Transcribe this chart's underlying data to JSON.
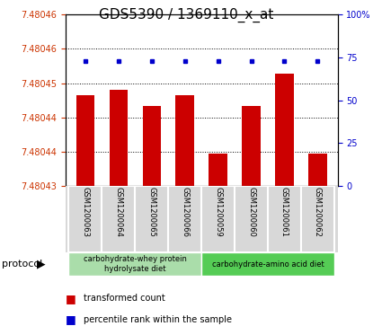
{
  "title": "GDS5390 / 1369110_x_at",
  "samples": [
    "GSM1200063",
    "GSM1200064",
    "GSM1200065",
    "GSM1200066",
    "GSM1200059",
    "GSM1200060",
    "GSM1200061",
    "GSM1200062"
  ],
  "transformed_count": [
    7.480447,
    7.480448,
    7.480445,
    7.480447,
    7.480436,
    7.480445,
    7.480451,
    7.480436
  ],
  "percentile_rank": [
    73,
    73,
    73,
    73,
    73,
    73,
    73,
    73
  ],
  "y_min": 7.48043,
  "y_max": 7.480462,
  "right_y_ticks": [
    0,
    25,
    50,
    75,
    100
  ],
  "bar_color": "#cc0000",
  "dot_color": "#0000cc",
  "protocol_groups": [
    {
      "label": "carbohydrate-whey protein\nhydrolysate diet",
      "start": 0,
      "end": 4,
      "color": "#aaddaa"
    },
    {
      "label": "carbohydrate-amino acid diet",
      "start": 4,
      "end": 8,
      "color": "#55cc55"
    }
  ],
  "legend_bar_color": "#cc0000",
  "legend_dot_color": "#0000cc",
  "protocol_label": "protocol",
  "tick_label_color_left": "#cc3300",
  "tick_label_color_right": "#0000cc",
  "title_fontsize": 11,
  "sample_label_fontsize": 6,
  "legend_fontsize": 7,
  "protocol_fontsize": 6,
  "sample_box_color": "#d8d8d8",
  "sample_box_edge_color": "#ffffff"
}
